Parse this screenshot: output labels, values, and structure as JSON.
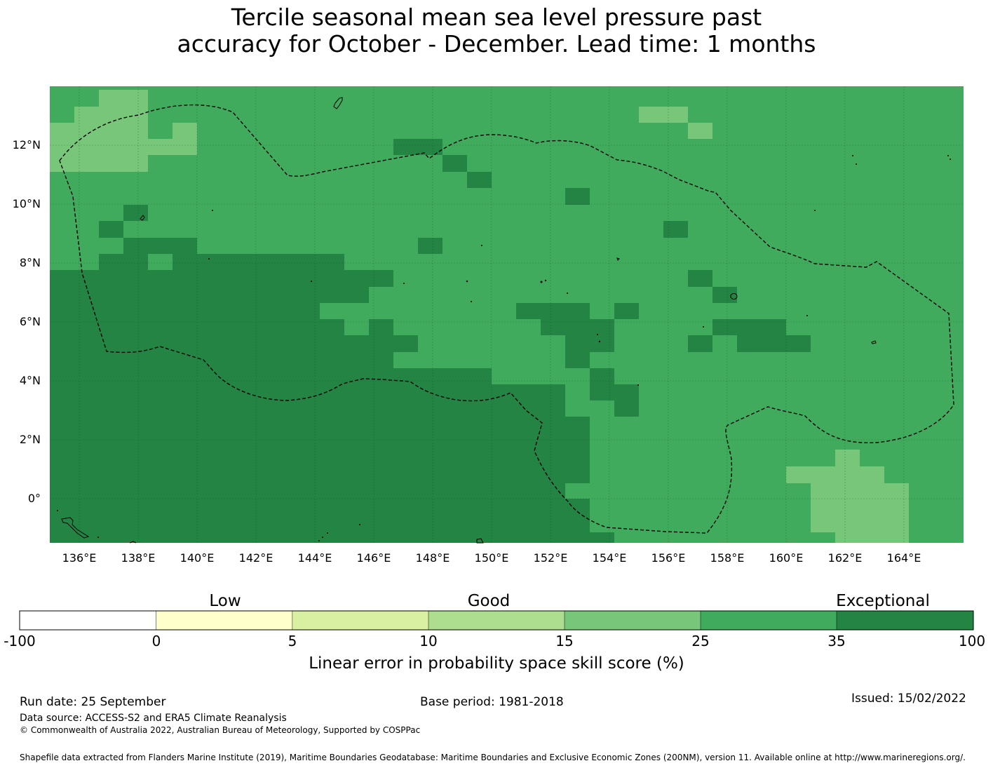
{
  "title": {
    "line1": "Tercile seasonal mean sea level pressure past",
    "line2": "accuracy for October - December. Lead time: 1 months"
  },
  "map": {
    "lat_labels": [
      "12°N",
      "10°N",
      "8°N",
      "6°N",
      "4°N",
      "2°N",
      "0°"
    ],
    "lon_labels": [
      "136°E",
      "138°E",
      "140°E",
      "142°E",
      "144°E",
      "146°E",
      "148°E",
      "150°E",
      "152°E",
      "154°E",
      "156°E",
      "158°E",
      "160°E",
      "162°E",
      "164°E"
    ],
    "colors": {
      "score_15_25": "#78c679",
      "score_25_35": "#41ab5d",
      "score_35_100": "#238443"
    }
  },
  "colorbar": {
    "categories": [
      "Low",
      "Good",
      "Exceptional"
    ],
    "ticks": [
      "-100",
      "0",
      "5",
      "10",
      "15",
      "25",
      "35",
      "100"
    ],
    "colors": [
      "#ffffff",
      "#ffffcc",
      "#d9f0a3",
      "#addd8e",
      "#78c679",
      "#41ab5d",
      "#238443"
    ],
    "label": "Linear error in probability space skill score (%)"
  },
  "footer": {
    "run_date": "Run date: 25 September",
    "base_period": "Base period: 1981-2018",
    "issued": "Issued: 15/02/2022",
    "data_source": "Data source: ACCESS-S2 and ERA5 Climate Reanalysis",
    "copyright": "© Commonwealth of Australia 2022, Australian Bureau of Meteorology, Supported by COSPPac",
    "shapefile": "Shapefile data extracted from Flanders Marine Institute (2019), Maritime Boundaries Geodatabase: Maritime Boundaries and Exclusive Economic Zones (200NM), version 11. Available online at http://www.marineregions.org/."
  }
}
